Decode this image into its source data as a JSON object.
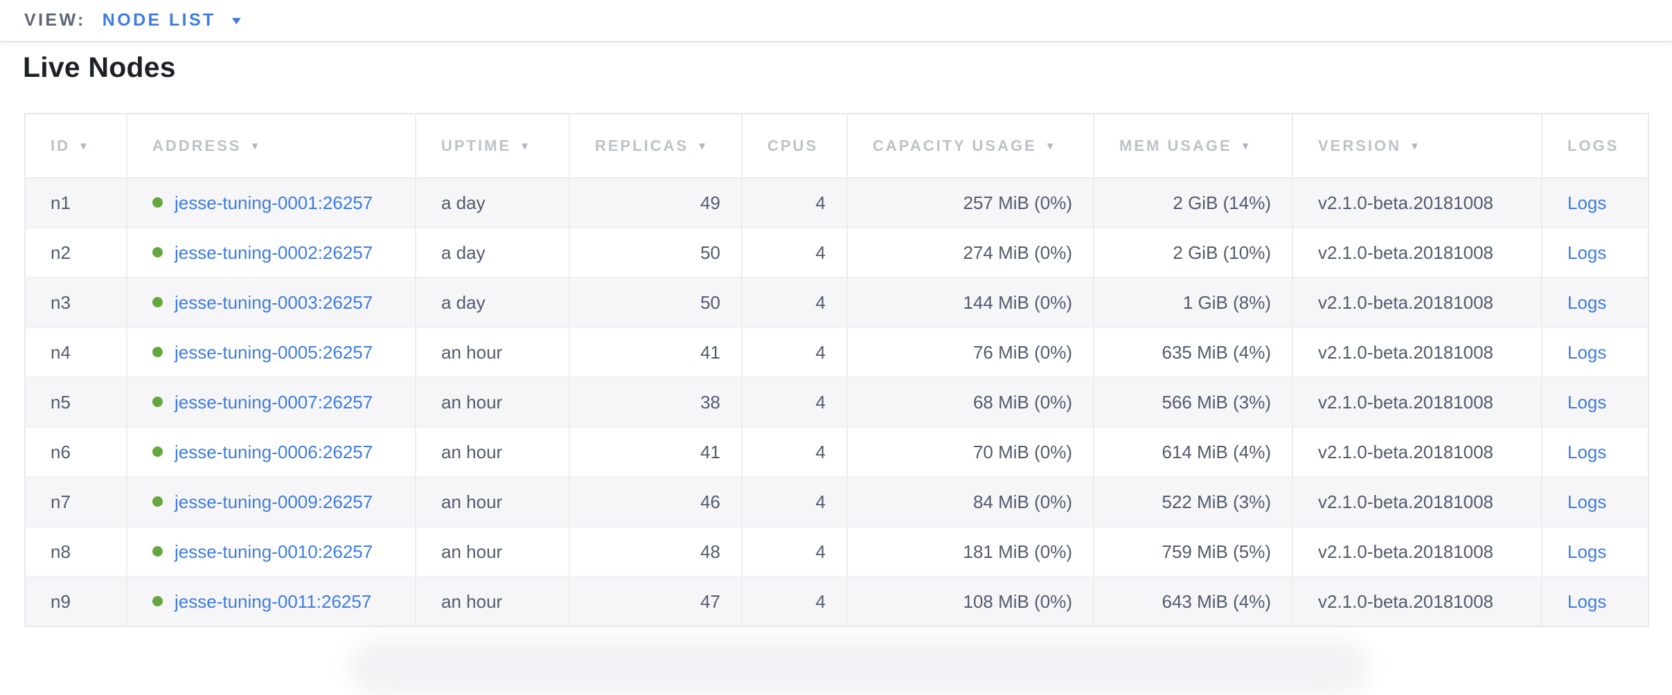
{
  "view_bar": {
    "label": "VIEW:",
    "selected": "NODE LIST",
    "caret_icon": "▼"
  },
  "page": {
    "title": "Live Nodes"
  },
  "colors": {
    "accent_blue": "#3e7ce0",
    "live_green": "#64a73c",
    "header_gray": "#bdc1c9",
    "cell_text": "#525a6d",
    "row_shade": "#f6f6f8"
  },
  "table": {
    "columns": [
      {
        "key": "id",
        "label": "ID",
        "sorted": true
      },
      {
        "key": "address",
        "label": "ADDRESS",
        "sorted": true
      },
      {
        "key": "uptime",
        "label": "UPTIME",
        "sorted": true
      },
      {
        "key": "replicas",
        "label": "REPLICAS",
        "sorted": true
      },
      {
        "key": "cpus",
        "label": "CPUS",
        "sorted": false
      },
      {
        "key": "capacity",
        "label": "CAPACITY USAGE",
        "sorted": true
      },
      {
        "key": "mem",
        "label": "MEM USAGE",
        "sorted": true
      },
      {
        "key": "version",
        "label": "VERSION",
        "sorted": true
      },
      {
        "key": "logs",
        "label": "LOGS",
        "sorted": false
      }
    ],
    "sort_arrow_icon": "▼",
    "rows": [
      {
        "id": "n1",
        "status": "live",
        "address": "jesse-tuning-0001:26257",
        "uptime": "a day",
        "replicas": "49",
        "cpus": "4",
        "capacity": "257 MiB (0%)",
        "mem": "2 GiB (14%)",
        "version": "v2.1.0-beta.20181008",
        "logs": "Logs"
      },
      {
        "id": "n2",
        "status": "live",
        "address": "jesse-tuning-0002:26257",
        "uptime": "a day",
        "replicas": "50",
        "cpus": "4",
        "capacity": "274 MiB (0%)",
        "mem": "2 GiB (10%)",
        "version": "v2.1.0-beta.20181008",
        "logs": "Logs"
      },
      {
        "id": "n3",
        "status": "live",
        "address": "jesse-tuning-0003:26257",
        "uptime": "a day",
        "replicas": "50",
        "cpus": "4",
        "capacity": "144 MiB (0%)",
        "mem": "1 GiB (8%)",
        "version": "v2.1.0-beta.20181008",
        "logs": "Logs"
      },
      {
        "id": "n4",
        "status": "live",
        "address": "jesse-tuning-0005:26257",
        "uptime": "an hour",
        "replicas": "41",
        "cpus": "4",
        "capacity": "76 MiB (0%)",
        "mem": "635 MiB (4%)",
        "version": "v2.1.0-beta.20181008",
        "logs": "Logs"
      },
      {
        "id": "n5",
        "status": "live",
        "address": "jesse-tuning-0007:26257",
        "uptime": "an hour",
        "replicas": "38",
        "cpus": "4",
        "capacity": "68 MiB (0%)",
        "mem": "566 MiB (3%)",
        "version": "v2.1.0-beta.20181008",
        "logs": "Logs"
      },
      {
        "id": "n6",
        "status": "live",
        "address": "jesse-tuning-0006:26257",
        "uptime": "an hour",
        "replicas": "41",
        "cpus": "4",
        "capacity": "70 MiB (0%)",
        "mem": "614 MiB (4%)",
        "version": "v2.1.0-beta.20181008",
        "logs": "Logs"
      },
      {
        "id": "n7",
        "status": "live",
        "address": "jesse-tuning-0009:26257",
        "uptime": "an hour",
        "replicas": "46",
        "cpus": "4",
        "capacity": "84 MiB (0%)",
        "mem": "522 MiB (3%)",
        "version": "v2.1.0-beta.20181008",
        "logs": "Logs"
      },
      {
        "id": "n8",
        "status": "live",
        "address": "jesse-tuning-0010:26257",
        "uptime": "an hour",
        "replicas": "48",
        "cpus": "4",
        "capacity": "181 MiB (0%)",
        "mem": "759 MiB (5%)",
        "version": "v2.1.0-beta.20181008",
        "logs": "Logs"
      },
      {
        "id": "n9",
        "status": "live",
        "address": "jesse-tuning-0011:26257",
        "uptime": "an hour",
        "replicas": "47",
        "cpus": "4",
        "capacity": "108 MiB (0%)",
        "mem": "643 MiB (4%)",
        "version": "v2.1.0-beta.20181008",
        "logs": "Logs"
      }
    ]
  }
}
